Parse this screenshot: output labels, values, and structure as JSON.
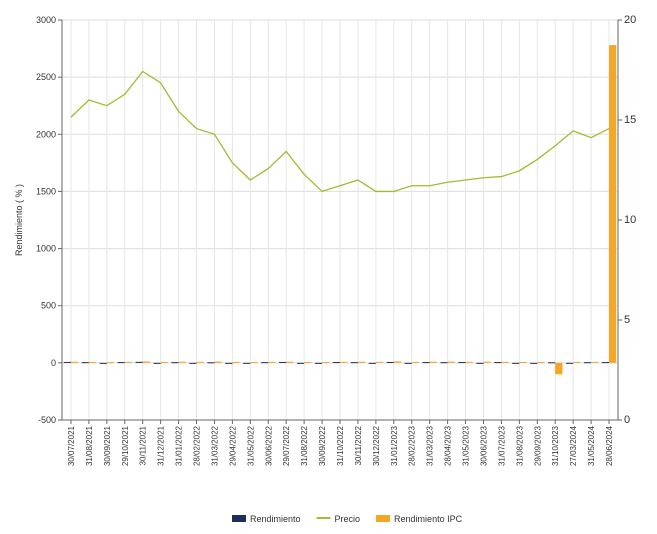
{
  "chart_data": {
    "type": "bar_line",
    "y_label": "Rendimiento ( % )",
    "categories": [
      "30/07/2021",
      "31/08/2021",
      "30/09/2021",
      "29/10/2021",
      "30/11/2021",
      "31/12/2021",
      "31/01/2022",
      "28/02/2022",
      "31/03/2022",
      "29/04/2022",
      "31/05/2022",
      "30/06/2022",
      "29/07/2022",
      "31/08/2022",
      "30/09/2022",
      "31/10/2022",
      "30/11/2022",
      "30/12/2022",
      "31/01/2023",
      "28/02/2023",
      "31/03/2023",
      "28/04/2023",
      "31/05/2023",
      "30/06/2023",
      "31/07/2023",
      "31/08/2023",
      "29/09/2023",
      "31/10/2023",
      "27/03/2024",
      "31/05/2024",
      "28/06/2024"
    ],
    "series": [
      {
        "name": "Rendimiento",
        "color": "#1f2d5a",
        "kind": "bar",
        "values": [
          8,
          6,
          -4,
          7,
          9,
          -5,
          6,
          -6,
          5,
          -8,
          -7,
          6,
          8,
          -8,
          -6,
          7,
          6,
          -6,
          8,
          -5,
          7,
          6,
          7,
          -5,
          7,
          -4,
          -6,
          5,
          -5,
          6,
          7
        ]
      },
      {
        "name": "Precio",
        "color": "#a8b832",
        "kind": "line",
        "values": [
          2150,
          2300,
          2250,
          2350,
          2550,
          2450,
          2200,
          2050,
          2000,
          1750,
          1600,
          1700,
          1850,
          1650,
          1500,
          1550,
          1600,
          1500,
          1500,
          1550,
          1550,
          1580,
          1600,
          1620,
          1630,
          1680,
          1780,
          1900,
          2030,
          1970,
          2050
        ]
      },
      {
        "name": "Rendimiento IPC",
        "color": "#f5a623",
        "kind": "bar",
        "values": [
          10,
          8,
          6,
          9,
          12,
          7,
          10,
          9,
          11,
          8,
          7,
          9,
          10,
          8,
          7,
          9,
          10,
          8,
          12,
          9,
          10,
          11,
          9,
          10,
          9,
          8,
          7,
          -100,
          9,
          8,
          2780
        ]
      }
    ],
    "ylim": [
      -500,
      3000
    ],
    "yticks": [
      -500,
      0,
      500,
      1000,
      1500,
      2000,
      2500,
      3000
    ],
    "y2lim": [
      0,
      20
    ],
    "y2ticks": [
      0,
      5,
      10,
      15,
      20
    ],
    "grid": true
  }
}
